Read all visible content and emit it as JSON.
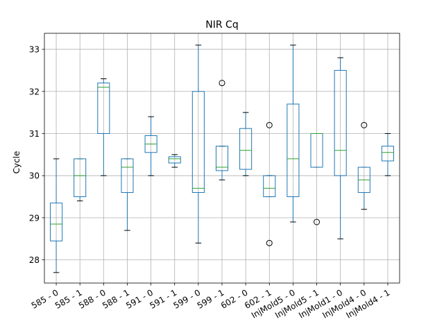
{
  "chart_data": {
    "type": "box",
    "title": "NIR Cq",
    "xlabel": "",
    "ylabel": "Cycle",
    "ylim": [
      27.45,
      33.38
    ],
    "yticks": [
      28,
      29,
      30,
      31,
      32,
      33
    ],
    "grid": true,
    "colors": {
      "box": "#1f77b4",
      "median": "#2ca02c",
      "whisker": "#1f77b4",
      "cap": "#000000",
      "flier": "#000000",
      "grid": "#b0b0b0"
    },
    "categories": [
      "585 - 0",
      "585 - 1",
      "588 - 0",
      "588 - 1",
      "591 - 0",
      "591 - 1",
      "599 - 0",
      "599 - 1",
      "602 - 0",
      "602 - 1",
      "InjMold5 - 0",
      "InjMold5 - 1",
      "InjMold1 - 0",
      "InjMold4 - 0",
      "InjMold4 - 1"
    ],
    "boxes": [
      {
        "category": "585 - 0",
        "whislo": 27.7,
        "q1": 28.45,
        "med": 28.85,
        "q3": 29.35,
        "whishi": 30.4,
        "fliers": []
      },
      {
        "category": "585 - 1",
        "whislo": 29.4,
        "q1": 29.5,
        "med": 30.0,
        "q3": 30.4,
        "whishi": 30.4,
        "fliers": []
      },
      {
        "category": "588 - 0",
        "whislo": 30.0,
        "q1": 31.0,
        "med": 32.1,
        "q3": 32.2,
        "whishi": 32.3,
        "fliers": []
      },
      {
        "category": "588 - 1",
        "whislo": 28.7,
        "q1": 29.6,
        "med": 30.2,
        "q3": 30.4,
        "whishi": 30.4,
        "fliers": []
      },
      {
        "category": "591 - 0",
        "whislo": 30.0,
        "q1": 30.55,
        "med": 30.75,
        "q3": 30.95,
        "whishi": 31.4,
        "fliers": []
      },
      {
        "category": "591 - 1",
        "whislo": 30.2,
        "q1": 30.3,
        "med": 30.4,
        "q3": 30.45,
        "whishi": 30.5,
        "fliers": []
      },
      {
        "category": "599 - 0",
        "whislo": 28.4,
        "q1": 29.6,
        "med": 29.7,
        "q3": 32.0,
        "whishi": 33.1,
        "fliers": []
      },
      {
        "category": "599 - 1",
        "whislo": 29.9,
        "q1": 30.12,
        "med": 30.2,
        "q3": 30.7,
        "whishi": 30.7,
        "fliers": [
          32.2
        ]
      },
      {
        "category": "602 - 0",
        "whislo": 30.0,
        "q1": 30.15,
        "med": 30.6,
        "q3": 31.12,
        "whishi": 31.5,
        "fliers": []
      },
      {
        "category": "602 - 1",
        "whislo": 29.5,
        "q1": 29.5,
        "med": 29.7,
        "q3": 30.0,
        "whishi": 30.0,
        "fliers": [
          31.2,
          28.4
        ]
      },
      {
        "category": "InjMold5 - 0",
        "whislo": 28.9,
        "q1": 29.5,
        "med": 30.4,
        "q3": 31.7,
        "whishi": 33.1,
        "fliers": []
      },
      {
        "category": "InjMold5 - 1",
        "whislo": 30.2,
        "q1": 30.2,
        "med": 31.0,
        "q3": 31.0,
        "whishi": 31.0,
        "fliers": [
          28.9
        ]
      },
      {
        "category": "InjMold1 - 0",
        "whislo": 28.5,
        "q1": 30.0,
        "med": 30.6,
        "q3": 32.5,
        "whishi": 32.8,
        "fliers": []
      },
      {
        "category": "InjMold4 - 0",
        "whislo": 29.2,
        "q1": 29.6,
        "med": 29.9,
        "q3": 30.2,
        "whishi": 30.2,
        "fliers": [
          31.2
        ]
      },
      {
        "category": "InjMold4 - 1",
        "whislo": 30.0,
        "q1": 30.35,
        "med": 30.55,
        "q3": 30.7,
        "whishi": 31.0,
        "fliers": []
      }
    ]
  }
}
